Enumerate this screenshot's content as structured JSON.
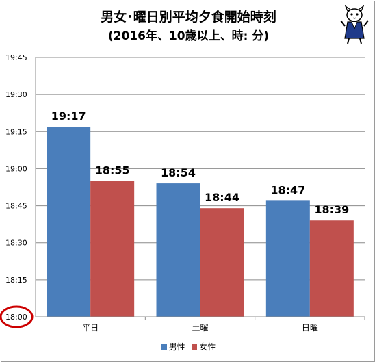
{
  "title_line1": "男女･曜日別平均夕食開始時刻",
  "title_line2": "(2016年、10歳以上、時: 分)",
  "chart_data": {
    "type": "bar",
    "title": "男女･曜日別平均夕食開始時刻 (2016年、10歳以上、時: 分)",
    "categories": [
      "平日",
      "土曜",
      "日曜"
    ],
    "series": [
      {
        "name": "男性",
        "color": "#4a7ebb",
        "values": [
          "19:17",
          "18:54",
          "18:47"
        ]
      },
      {
        "name": "女性",
        "color": "#c0504d",
        "values": [
          "18:55",
          "18:44",
          "18:39"
        ]
      }
    ],
    "y_ticks": [
      "18:00",
      "18:15",
      "18:30",
      "18:45",
      "19:00",
      "19:15",
      "19:30",
      "19:45"
    ],
    "ylim": [
      "18:00",
      "19:45"
    ],
    "grid": true,
    "legend_position": "bottom",
    "annotation": "red ellipse circling the 18:00 axis label"
  },
  "legend": {
    "male": "男性",
    "female": "女性"
  },
  "colors": {
    "male": "#4a7ebb",
    "female": "#c0504d",
    "circle": "#cc0000",
    "grid": "#8c8c8c"
  }
}
